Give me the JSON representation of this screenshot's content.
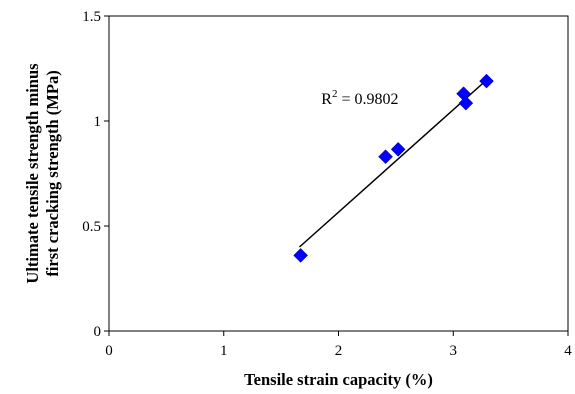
{
  "chart_data": {
    "type": "scatter",
    "xlabel": "Tensile strain capacity (%)",
    "ylabel_lines": [
      "Ultimate tensile strength minus",
      "first cracking strength (MPa)"
    ],
    "xlim": [
      0,
      4
    ],
    "ylim": [
      0,
      1.5
    ],
    "x_ticks": [
      "0",
      "1",
      "2",
      "3",
      "4"
    ],
    "y_ticks": [
      "0",
      "0.5",
      "1",
      "1.5"
    ],
    "grid": false,
    "legend": "none",
    "marker": "diamond",
    "marker_color": "#0000ff",
    "series": [
      {
        "points": [
          {
            "x": 1.67,
            "y": 0.36
          },
          {
            "x": 2.41,
            "y": 0.83
          },
          {
            "x": 2.52,
            "y": 0.865
          },
          {
            "x": 3.09,
            "y": 1.13
          },
          {
            "x": 3.11,
            "y": 1.085
          },
          {
            "x": 3.29,
            "y": 1.19
          }
        ]
      }
    ],
    "trendline": {
      "x": [
        1.66,
        3.3
      ],
      "y": [
        0.4,
        1.2
      ],
      "color": "#000000"
    },
    "annotation": {
      "base": "R",
      "sup": "2",
      "rest": " = 0.9802",
      "x": 1.85,
      "y": 1.08
    }
  }
}
